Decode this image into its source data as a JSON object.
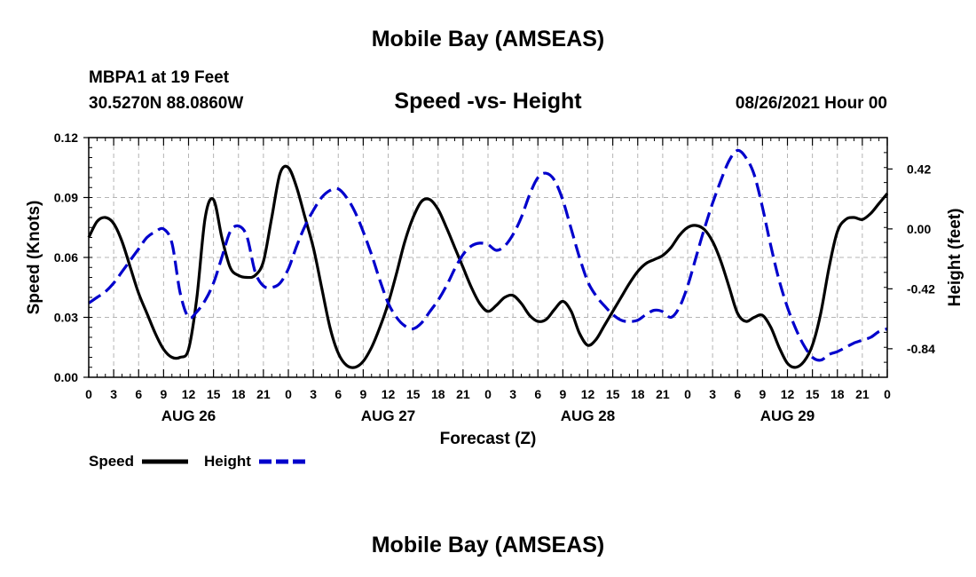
{
  "header": {
    "title": "Mobile Bay (AMSEAS)",
    "station": "MBPA1 at 19 Feet",
    "coords": "30.5270N  88.0860W",
    "subtitle": "Speed -vs- Height",
    "datetime": "08/26/2021 Hour 00"
  },
  "footer": {
    "title": "Mobile Bay (AMSEAS)"
  },
  "legend": {
    "speed_label": "Speed",
    "height_label": "Height"
  },
  "colors": {
    "speed": "#000000",
    "height": "#0000cc",
    "grid": "#b4b4b4"
  },
  "chart_data": {
    "type": "line",
    "title": "Speed -vs- Height",
    "xlabel": "Forecast (Z)",
    "ylabel": "Speed (Knots)",
    "y2label": "Height (feet)",
    "xlim": [
      0,
      96
    ],
    "ylim": [
      0,
      0.12
    ],
    "y2lim": [
      -1.04,
      0.64
    ],
    "x_ticks": [
      0,
      3,
      6,
      9,
      12,
      15,
      18,
      21,
      24,
      27,
      30,
      33,
      36,
      39,
      42,
      45,
      48,
      51,
      54,
      57,
      60,
      63,
      66,
      69,
      72,
      75,
      78,
      81,
      84,
      87,
      90,
      93,
      96
    ],
    "x_tick_labels": [
      "0",
      "3",
      "6",
      "9",
      "12",
      "15",
      "18",
      "21",
      "0",
      "3",
      "6",
      "9",
      "12",
      "15",
      "18",
      "21",
      "0",
      "3",
      "6",
      "9",
      "12",
      "15",
      "18",
      "21",
      "0",
      "3",
      "6",
      "9",
      "12",
      "15",
      "18",
      "21",
      "0"
    ],
    "y_ticks": [
      0,
      0.03,
      0.06,
      0.09,
      0.12
    ],
    "y_tick_labels": [
      "0.00",
      "0.03",
      "0.06",
      "0.09",
      "0.12"
    ],
    "y2_ticks": [
      0.42,
      0.0,
      -0.42,
      -0.84
    ],
    "y2_tick_labels": [
      "0.42",
      "0.00",
      "-0.42",
      "-0.84"
    ],
    "day_labels": [
      {
        "x": 12,
        "label": "AUG 26"
      },
      {
        "x": 36,
        "label": "AUG 27"
      },
      {
        "x": 60,
        "label": "AUG 28"
      },
      {
        "x": 84,
        "label": "AUG 29"
      }
    ],
    "grid": true,
    "series": [
      {
        "name": "Speed",
        "axis": "left",
        "style": "solid",
        "points": [
          [
            0,
            0.07
          ],
          [
            1,
            0.078
          ],
          [
            2,
            0.08
          ],
          [
            3,
            0.077
          ],
          [
            4,
            0.068
          ],
          [
            5,
            0.055
          ],
          [
            6,
            0.042
          ],
          [
            7,
            0.032
          ],
          [
            8,
            0.022
          ],
          [
            9,
            0.014
          ],
          [
            10,
            0.01
          ],
          [
            11,
            0.01
          ],
          [
            12,
            0.014
          ],
          [
            13,
            0.04
          ],
          [
            14,
            0.08
          ],
          [
            15,
            0.089
          ],
          [
            16,
            0.07
          ],
          [
            17,
            0.055
          ],
          [
            18,
            0.051
          ],
          [
            19,
            0.05
          ],
          [
            20,
            0.051
          ],
          [
            21,
            0.058
          ],
          [
            22,
            0.08
          ],
          [
            23,
            0.102
          ],
          [
            24,
            0.105
          ],
          [
            25,
            0.095
          ],
          [
            26,
            0.08
          ],
          [
            27,
            0.065
          ],
          [
            28,
            0.045
          ],
          [
            29,
            0.025
          ],
          [
            30,
            0.012
          ],
          [
            31,
            0.006
          ],
          [
            32,
            0.005
          ],
          [
            33,
            0.008
          ],
          [
            34,
            0.015
          ],
          [
            35,
            0.025
          ],
          [
            36,
            0.037
          ],
          [
            37,
            0.052
          ],
          [
            38,
            0.068
          ],
          [
            39,
            0.08
          ],
          [
            40,
            0.088
          ],
          [
            41,
            0.089
          ],
          [
            42,
            0.084
          ],
          [
            43,
            0.075
          ],
          [
            44,
            0.065
          ],
          [
            45,
            0.055
          ],
          [
            46,
            0.045
          ],
          [
            47,
            0.037
          ],
          [
            48,
            0.033
          ],
          [
            49,
            0.036
          ],
          [
            50,
            0.04
          ],
          [
            51,
            0.041
          ],
          [
            52,
            0.037
          ],
          [
            53,
            0.031
          ],
          [
            54,
            0.028
          ],
          [
            55,
            0.029
          ],
          [
            56,
            0.034
          ],
          [
            57,
            0.038
          ],
          [
            58,
            0.033
          ],
          [
            59,
            0.022
          ],
          [
            60,
            0.016
          ],
          [
            61,
            0.019
          ],
          [
            62,
            0.026
          ],
          [
            63,
            0.033
          ],
          [
            64,
            0.04
          ],
          [
            65,
            0.047
          ],
          [
            66,
            0.053
          ],
          [
            67,
            0.057
          ],
          [
            68,
            0.059
          ],
          [
            69,
            0.061
          ],
          [
            70,
            0.065
          ],
          [
            71,
            0.071
          ],
          [
            72,
            0.075
          ],
          [
            73,
            0.076
          ],
          [
            74,
            0.074
          ],
          [
            75,
            0.068
          ],
          [
            76,
            0.058
          ],
          [
            77,
            0.045
          ],
          [
            78,
            0.032
          ],
          [
            79,
            0.028
          ],
          [
            80,
            0.03
          ],
          [
            81,
            0.031
          ],
          [
            82,
            0.025
          ],
          [
            83,
            0.015
          ],
          [
            84,
            0.007
          ],
          [
            85,
            0.005
          ],
          [
            86,
            0.008
          ],
          [
            87,
            0.016
          ],
          [
            88,
            0.032
          ],
          [
            89,
            0.055
          ],
          [
            90,
            0.073
          ],
          [
            91,
            0.079
          ],
          [
            92,
            0.08
          ],
          [
            93,
            0.079
          ],
          [
            94,
            0.082
          ],
          [
            95,
            0.087
          ],
          [
            96,
            0.092
          ]
        ]
      },
      {
        "name": "Height",
        "axis": "right",
        "style": "dashed",
        "points": [
          [
            0,
            -0.52
          ],
          [
            1,
            -0.48
          ],
          [
            2,
            -0.44
          ],
          [
            3,
            -0.38
          ],
          [
            4,
            -0.3
          ],
          [
            5,
            -0.22
          ],
          [
            6,
            -0.14
          ],
          [
            7,
            -0.06
          ],
          [
            8,
            -0.02
          ],
          [
            9,
            0.0
          ],
          [
            10,
            -0.1
          ],
          [
            11,
            -0.45
          ],
          [
            12,
            -0.62
          ],
          [
            13,
            -0.58
          ],
          [
            14,
            -0.5
          ],
          [
            15,
            -0.38
          ],
          [
            16,
            -0.2
          ],
          [
            17,
            -0.02
          ],
          [
            18,
            0.02
          ],
          [
            19,
            -0.05
          ],
          [
            20,
            -0.3
          ],
          [
            21,
            -0.4
          ],
          [
            22,
            -0.41
          ],
          [
            23,
            -0.38
          ],
          [
            24,
            -0.28
          ],
          [
            25,
            -0.12
          ],
          [
            26,
            0.02
          ],
          [
            27,
            0.13
          ],
          [
            28,
            0.22
          ],
          [
            29,
            0.27
          ],
          [
            30,
            0.28
          ],
          [
            31,
            0.22
          ],
          [
            32,
            0.12
          ],
          [
            33,
            -0.02
          ],
          [
            34,
            -0.18
          ],
          [
            35,
            -0.36
          ],
          [
            36,
            -0.52
          ],
          [
            37,
            -0.62
          ],
          [
            38,
            -0.68
          ],
          [
            39,
            -0.7
          ],
          [
            40,
            -0.66
          ],
          [
            41,
            -0.58
          ],
          [
            42,
            -0.5
          ],
          [
            43,
            -0.4
          ],
          [
            44,
            -0.28
          ],
          [
            45,
            -0.18
          ],
          [
            46,
            -0.12
          ],
          [
            47,
            -0.1
          ],
          [
            48,
            -0.11
          ],
          [
            49,
            -0.15
          ],
          [
            50,
            -0.12
          ],
          [
            51,
            -0.04
          ],
          [
            52,
            0.08
          ],
          [
            53,
            0.24
          ],
          [
            54,
            0.36
          ],
          [
            55,
            0.39
          ],
          [
            56,
            0.34
          ],
          [
            57,
            0.2
          ],
          [
            58,
            0.0
          ],
          [
            59,
            -0.2
          ],
          [
            60,
            -0.37
          ],
          [
            61,
            -0.47
          ],
          [
            62,
            -0.54
          ],
          [
            63,
            -0.6
          ],
          [
            64,
            -0.64
          ],
          [
            65,
            -0.65
          ],
          [
            66,
            -0.64
          ],
          [
            67,
            -0.6
          ],
          [
            68,
            -0.57
          ],
          [
            69,
            -0.58
          ],
          [
            70,
            -0.62
          ],
          [
            71,
            -0.55
          ],
          [
            72,
            -0.4
          ],
          [
            73,
            -0.2
          ],
          [
            74,
            0.0
          ],
          [
            75,
            0.18
          ],
          [
            76,
            0.34
          ],
          [
            77,
            0.48
          ],
          [
            78,
            0.55
          ],
          [
            79,
            0.5
          ],
          [
            80,
            0.38
          ],
          [
            81,
            0.15
          ],
          [
            82,
            -0.12
          ],
          [
            83,
            -0.36
          ],
          [
            84,
            -0.55
          ],
          [
            85,
            -0.7
          ],
          [
            86,
            -0.82
          ],
          [
            87,
            -0.9
          ],
          [
            88,
            -0.92
          ],
          [
            89,
            -0.88
          ],
          [
            90,
            -0.86
          ],
          [
            91,
            -0.83
          ],
          [
            92,
            -0.8
          ],
          [
            93,
            -0.78
          ],
          [
            94,
            -0.76
          ],
          [
            95,
            -0.72
          ],
          [
            96,
            -0.7
          ]
        ]
      }
    ]
  }
}
